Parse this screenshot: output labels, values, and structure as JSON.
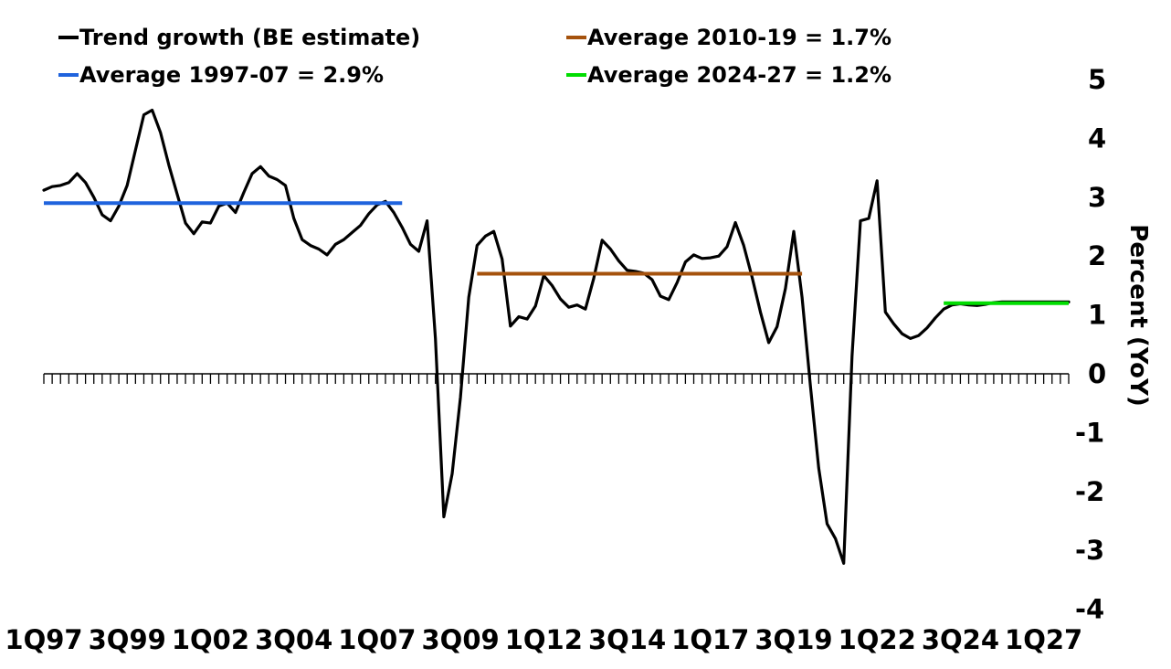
{
  "chart_data": {
    "type": "line",
    "title": "",
    "unit": "%",
    "background_color": "#ffffff",
    "axis_color": "#000000",
    "x_axis": {
      "quarters_start": "1997Q1",
      "quarters_end": "2027Q4",
      "num_quarters": 124,
      "tick_labels": [
        "1Q97",
        "3Q99",
        "1Q02",
        "3Q04",
        "1Q07",
        "3Q09",
        "1Q12",
        "3Q14",
        "1Q17",
        "3Q19",
        "1Q22",
        "3Q24",
        "1Q27"
      ],
      "label_every_n_quarters": 10,
      "minor_tick_every_quarter": true
    },
    "y_axis": {
      "label": "Percent (YoY)",
      "ticks": [
        5,
        4,
        3,
        2,
        1,
        0,
        -1,
        -2,
        -3,
        -4
      ],
      "range": [
        -4,
        5
      ],
      "side": "right",
      "grid": false
    },
    "trend_series": {
      "name": "Trend growth (BE estimate)",
      "color": "#000000",
      "values": [
        3.12,
        3.18,
        3.2,
        3.25,
        3.4,
        3.25,
        3.0,
        2.7,
        2.6,
        2.85,
        3.2,
        3.8,
        4.4,
        4.48,
        4.1,
        3.55,
        3.05,
        2.56,
        2.38,
        2.58,
        2.56,
        2.85,
        2.9,
        2.74,
        3.08,
        3.4,
        3.52,
        3.36,
        3.3,
        3.2,
        2.64,
        2.28,
        2.18,
        2.12,
        2.02,
        2.2,
        2.28,
        2.4,
        2.52,
        2.72,
        2.87,
        2.93,
        2.74,
        2.49,
        2.2,
        2.08,
        2.6,
        0.6,
        -2.43,
        -1.7,
        -0.4,
        1.3,
        2.18,
        2.34,
        2.42,
        1.95,
        0.81,
        0.97,
        0.93,
        1.15,
        1.67,
        1.5,
        1.27,
        1.13,
        1.17,
        1.1,
        1.62,
        2.27,
        2.12,
        1.92,
        1.76,
        1.74,
        1.71,
        1.6,
        1.32,
        1.26,
        1.55,
        1.9,
        2.02,
        1.96,
        1.97,
        2.0,
        2.16,
        2.57,
        2.18,
        1.64,
        1.05,
        0.53,
        0.8,
        1.45,
        2.42,
        1.3,
        -0.2,
        -1.6,
        -2.55,
        -2.8,
        -3.22,
        0.3,
        2.6,
        2.64,
        3.28,
        1.05,
        0.85,
        0.68,
        0.6,
        0.65,
        0.78,
        0.95,
        1.1,
        1.17,
        1.19,
        1.17,
        1.16,
        1.18,
        1.21,
        1.22,
        1.22,
        1.22,
        1.22,
        1.22,
        1.22,
        1.22,
        1.22,
        1.22
      ]
    },
    "average_lines": [
      {
        "label": "Average 1997-07 = 2.9%",
        "period": "1997-07",
        "value": 2.9,
        "from_quarter": 0,
        "to_quarter": 43,
        "color": "#1f63dd"
      },
      {
        "label": "Average 2010-19 = 1.7%",
        "period": "2010-19",
        "value": 1.7,
        "from_quarter": 52,
        "to_quarter": 91,
        "color": "#a5520d"
      },
      {
        "label": "Average 2024-27 = 1.2%",
        "period": "2024-27",
        "value": 1.2,
        "from_quarter": 108,
        "to_quarter": 123,
        "color": "#00dd00"
      }
    ],
    "legend_position": "top"
  },
  "legend": {
    "items": [
      {
        "label": "Trend growth (BE estimate)",
        "color": "#000000"
      },
      {
        "label": "Average 1997-07 = 2.9%",
        "color": "#1f63dd"
      },
      {
        "label": "Average 2010-19 = 1.7%",
        "color": "#a5520d"
      },
      {
        "label": "Average 2024-27 = 1.2%",
        "color": "#00dd00"
      }
    ]
  }
}
